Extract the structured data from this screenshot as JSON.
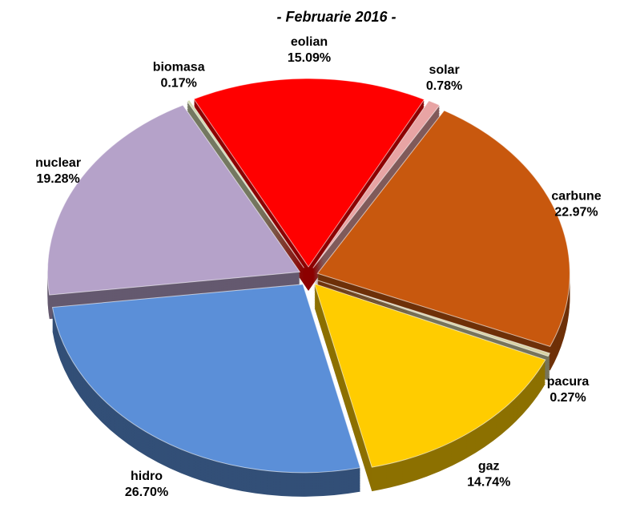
{
  "chart_data": {
    "type": "pie",
    "subtitle": "- Februarie 2016 -",
    "categories": [
      "eolian",
      "solar",
      "carbune",
      "pacura",
      "gaz",
      "hidro",
      "nuclear",
      "biomasa"
    ],
    "values": [
      15.09,
      0.78,
      22.97,
      0.27,
      14.74,
      26.7,
      19.28,
      0.17
    ],
    "value_labels": [
      "15.09%",
      "0.78%",
      "22.97%",
      "0.27%",
      "14.74%",
      "26.70%",
      "19.28%",
      "0.17%"
    ],
    "colors": [
      "#ff0000",
      "#e8a4a4",
      "#c8580e",
      "#d8d2a4",
      "#ffcc00",
      "#5b8fd8",
      "#b5a2c9",
      "#d2dab0"
    ]
  }
}
